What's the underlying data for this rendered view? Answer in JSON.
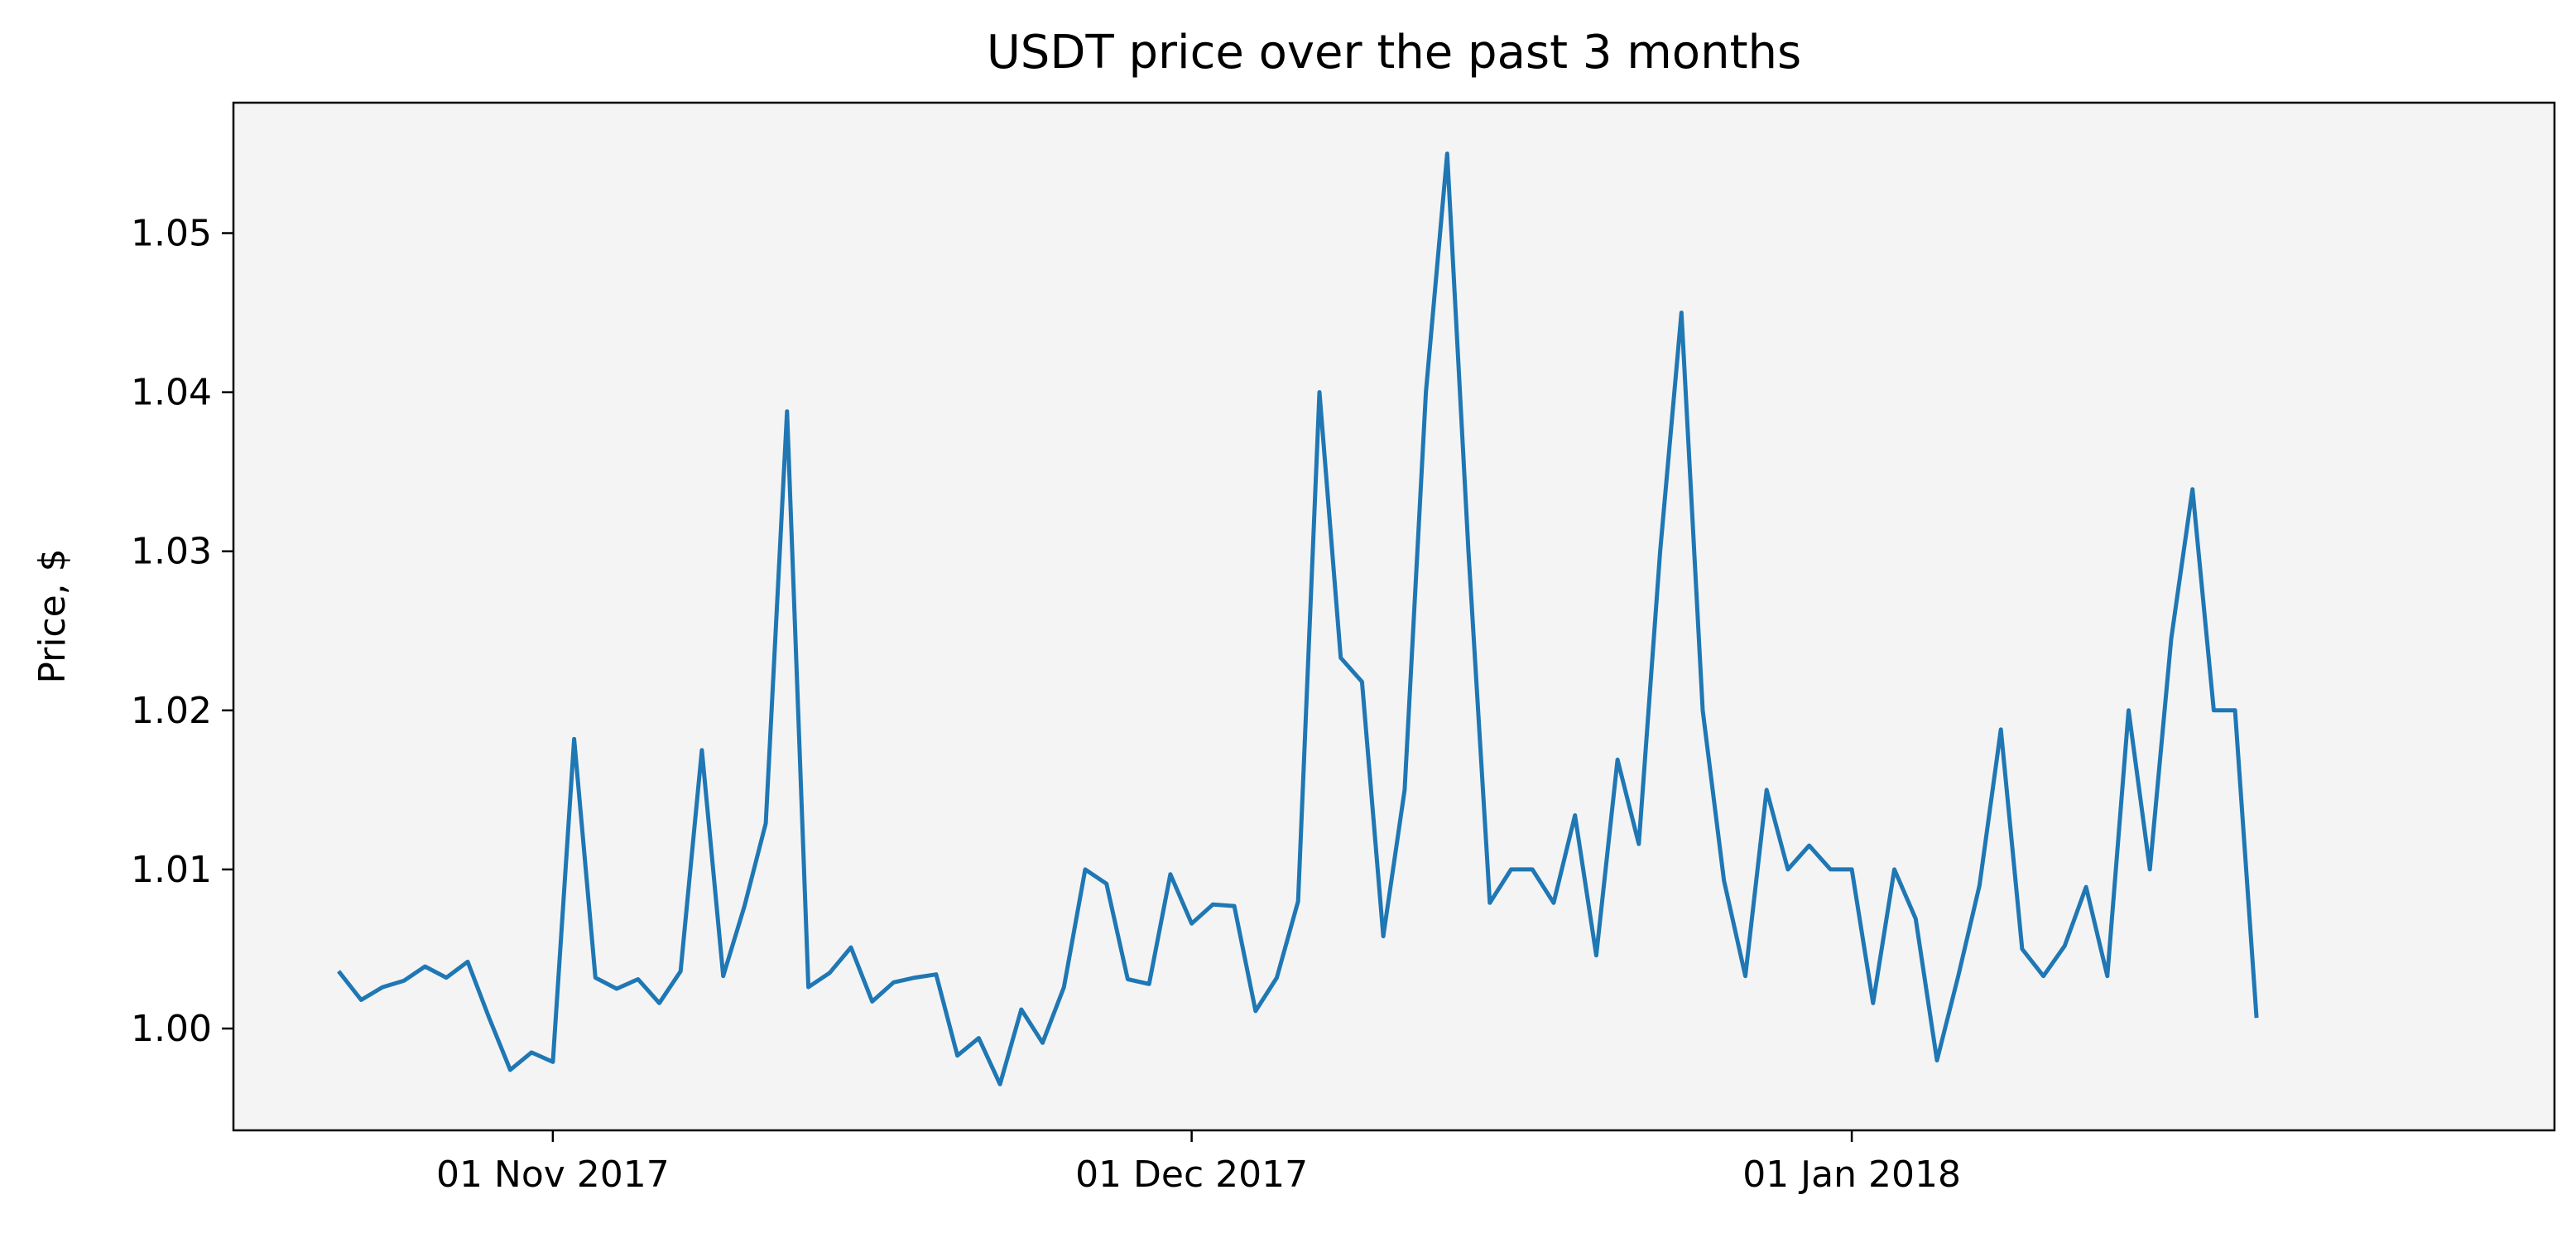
{
  "chart_data": {
    "type": "line",
    "title": "USDT price over the past 3 months",
    "xlabel": "",
    "ylabel": "Price, $",
    "x_tick_labels": [
      "01 Nov 2017",
      "01 Dec 2017",
      "01 Jan 2018"
    ],
    "y_tick_labels": [
      "1.00",
      "1.01",
      "1.02",
      "1.03",
      "1.04",
      "1.05"
    ],
    "xlim": [
      "2017-10-17",
      "2018-02-03"
    ],
    "ylim": [
      0.9936,
      1.0582
    ],
    "grid": false,
    "legend": "none",
    "colors": {
      "line": "#1f77b4",
      "plot_background": "#f4f4f4",
      "axis": "#000000"
    },
    "series": [
      {
        "x": [
          "2017-10-22",
          "2017-10-23",
          "2017-10-24",
          "2017-10-25",
          "2017-10-26",
          "2017-10-27",
          "2017-10-28",
          "2017-10-29",
          "2017-10-30",
          "2017-10-31",
          "2017-11-01",
          "2017-11-02",
          "2017-11-03",
          "2017-11-04",
          "2017-11-05",
          "2017-11-06",
          "2017-11-07",
          "2017-11-08",
          "2017-11-09",
          "2017-11-10",
          "2017-11-11",
          "2017-11-12",
          "2017-11-13",
          "2017-11-14",
          "2017-11-15",
          "2017-11-16",
          "2017-11-17",
          "2017-11-18",
          "2017-11-19",
          "2017-11-20",
          "2017-11-21",
          "2017-11-22",
          "2017-11-23",
          "2017-11-24",
          "2017-11-25",
          "2017-11-26",
          "2017-11-27",
          "2017-11-28",
          "2017-11-29",
          "2017-11-30",
          "2017-12-01",
          "2017-12-02",
          "2017-12-03",
          "2017-12-04",
          "2017-12-05",
          "2017-12-06",
          "2017-12-07",
          "2017-12-08",
          "2017-12-09",
          "2017-12-10",
          "2017-12-11",
          "2017-12-12",
          "2017-12-13",
          "2017-12-14",
          "2017-12-15",
          "2017-12-16",
          "2017-12-17",
          "2017-12-18",
          "2017-12-19",
          "2017-12-20",
          "2017-12-21",
          "2017-12-22",
          "2017-12-23",
          "2017-12-24",
          "2017-12-25",
          "2017-12-26",
          "2017-12-27",
          "2017-12-28",
          "2017-12-29",
          "2017-12-30",
          "2017-12-31",
          "2018-01-01",
          "2018-01-02",
          "2018-01-03",
          "2018-01-04",
          "2018-01-05",
          "2018-01-06",
          "2018-01-07",
          "2018-01-08",
          "2018-01-09",
          "2018-01-10",
          "2018-01-11",
          "2018-01-12",
          "2018-01-13",
          "2018-01-14",
          "2018-01-15",
          "2018-01-16",
          "2018-01-17",
          "2018-01-18",
          "2018-01-19",
          "2018-01-20"
        ],
        "values": [
          1.0035,
          1.0018,
          1.0026,
          1.003,
          1.0039,
          1.0032,
          1.0042,
          1.0007,
          0.9974,
          0.9985,
          0.9979,
          1.0182,
          1.0032,
          1.0025,
          1.0031,
          1.0016,
          1.0036,
          1.0175,
          1.0033,
          1.0077,
          1.0129,
          1.0388,
          1.0026,
          1.0035,
          1.0051,
          1.0017,
          1.0029,
          1.0032,
          1.0034,
          0.9983,
          0.9994,
          0.9965,
          1.0012,
          0.9991,
          1.0026,
          1.01,
          1.0091,
          1.0031,
          1.0028,
          1.0097,
          1.0066,
          1.0078,
          1.0077,
          1.0011,
          1.0032,
          1.008,
          1.04,
          1.0233,
          1.0218,
          1.0058,
          1.015,
          1.04,
          1.055,
          1.03,
          1.0079,
          1.01,
          1.01,
          1.0079,
          1.0134,
          1.0046,
          1.0169,
          1.0116,
          1.03,
          1.045,
          1.02,
          1.0093,
          1.0033,
          1.015,
          1.01,
          1.0115,
          1.01,
          1.01,
          1.0016,
          1.01,
          1.0069,
          0.998,
          1.0033,
          1.009,
          1.0188,
          1.005,
          1.0033,
          1.0052,
          1.0089,
          1.0033,
          1.02,
          1.01,
          1.0245,
          1.0339,
          1.02,
          1.02,
          1.0008
        ]
      }
    ]
  }
}
